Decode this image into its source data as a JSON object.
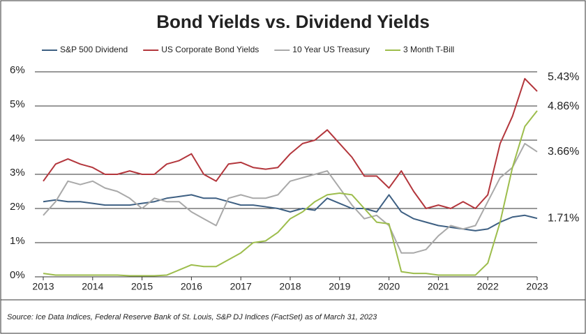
{
  "chart_data": {
    "type": "line",
    "title": "Bond Yields vs. Dividend Yields",
    "source": "Source: Ice Data Indices, Federal Reserve Bank of St. Louis, S&P DJ Indices (FactSet) as of March 31, 2023",
    "x": [
      2013,
      2013.25,
      2013.5,
      2013.75,
      2014,
      2014.25,
      2014.5,
      2014.75,
      2015,
      2015.25,
      2015.5,
      2015.75,
      2016,
      2016.25,
      2016.5,
      2016.75,
      2017,
      2017.25,
      2017.5,
      2017.75,
      2018,
      2018.25,
      2018.5,
      2018.75,
      2019,
      2019.25,
      2019.5,
      2019.75,
      2020,
      2020.25,
      2020.5,
      2020.75,
      2021,
      2021.25,
      2021.5,
      2021.75,
      2022,
      2022.25,
      2022.5,
      2022.75,
      2023
    ],
    "series": [
      {
        "name": "S&P 500 Dividend",
        "color": "#3d5f82",
        "values": [
          2.2,
          2.25,
          2.2,
          2.2,
          2.15,
          2.1,
          2.1,
          2.1,
          2.15,
          2.2,
          2.3,
          2.35,
          2.4,
          2.3,
          2.3,
          2.2,
          2.1,
          2.1,
          2.05,
          2.0,
          1.9,
          2.0,
          1.95,
          2.3,
          2.15,
          2.0,
          2.0,
          1.9,
          2.4,
          1.9,
          1.7,
          1.6,
          1.5,
          1.45,
          1.4,
          1.35,
          1.4,
          1.6,
          1.75,
          1.8,
          1.71
        ]
      },
      {
        "name": "US Corporate Bond Yields",
        "color": "#b3363c",
        "values": [
          2.8,
          3.3,
          3.45,
          3.3,
          3.2,
          3.0,
          3.0,
          3.1,
          3.0,
          3.0,
          3.3,
          3.4,
          3.6,
          3.0,
          2.8,
          3.3,
          3.35,
          3.2,
          3.15,
          3.2,
          3.6,
          3.9,
          4.0,
          4.3,
          3.9,
          3.5,
          2.95,
          2.95,
          2.6,
          3.1,
          2.5,
          2.0,
          2.1,
          2.0,
          2.2,
          2.0,
          2.4,
          3.9,
          4.7,
          5.8,
          5.43
        ]
      },
      {
        "name": "10 Year US Treasury",
        "color": "#a9a9a9",
        "values": [
          1.8,
          2.2,
          2.8,
          2.7,
          2.8,
          2.6,
          2.5,
          2.3,
          2.0,
          2.3,
          2.2,
          2.2,
          1.9,
          1.7,
          1.5,
          2.3,
          2.4,
          2.3,
          2.3,
          2.4,
          2.8,
          2.9,
          3.0,
          3.1,
          2.6,
          2.1,
          1.7,
          1.8,
          1.5,
          0.7,
          0.7,
          0.8,
          1.2,
          1.5,
          1.4,
          1.5,
          2.2,
          2.9,
          3.2,
          3.9,
          3.66
        ]
      },
      {
        "name": "3 Month T-Bill",
        "color": "#9dbd4c",
        "values": [
          0.1,
          0.05,
          0.05,
          0.05,
          0.05,
          0.05,
          0.05,
          0.03,
          0.03,
          0.03,
          0.05,
          0.2,
          0.35,
          0.3,
          0.3,
          0.5,
          0.7,
          1.0,
          1.05,
          1.3,
          1.7,
          1.9,
          2.2,
          2.4,
          2.45,
          2.4,
          2.0,
          1.6,
          1.55,
          0.15,
          0.1,
          0.1,
          0.05,
          0.05,
          0.05,
          0.05,
          0.4,
          1.6,
          3.2,
          4.4,
          4.86
        ]
      }
    ],
    "annotations": [
      {
        "text": "5.43%",
        "value": 5.43
      },
      {
        "text": "4.86%",
        "value": 4.86
      },
      {
        "text": "3.66%",
        "value": 3.66
      },
      {
        "text": "1.71%",
        "value": 1.71
      }
    ],
    "xlim": [
      2013,
      2023
    ],
    "xticks": [
      2013,
      2014,
      2015,
      2016,
      2017,
      2018,
      2019,
      2020,
      2021,
      2022,
      2023
    ],
    "ylim": [
      0,
      6
    ],
    "yticks": [
      {
        "value": 0,
        "label": "0%"
      },
      {
        "value": 1,
        "label": "1%"
      },
      {
        "value": 2,
        "label": "2%"
      },
      {
        "value": 3,
        "label": "3%"
      },
      {
        "value": 4,
        "label": "4%"
      },
      {
        "value": 5,
        "label": "5%"
      },
      {
        "value": 6,
        "label": "6%"
      }
    ],
    "grid": true
  }
}
